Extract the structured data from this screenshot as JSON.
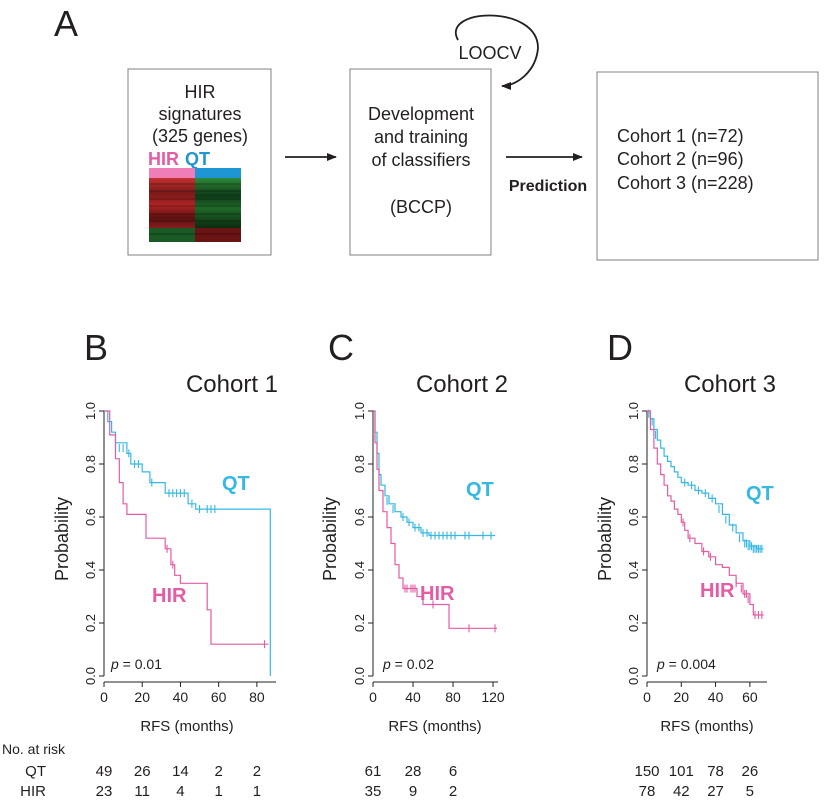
{
  "colors": {
    "qt": "#35b8e4",
    "hir": "#e45ca4",
    "text": "#231f20",
    "axis": "#231f20"
  },
  "panel_a": {
    "letter": "A",
    "box1": {
      "lines": [
        "HIR",
        "signatures",
        "(325 genes)"
      ],
      "hir_label": "HIR",
      "qt_label": "QT"
    },
    "box2": {
      "lines": [
        "Development",
        "and training",
        "of classifiers",
        "(BCCP)"
      ]
    },
    "loop_label": "LOOCV",
    "arrow2_label": "Prediction",
    "box3": {
      "lines": [
        "Cohort 1 (n=72)",
        "Cohort 2 (n=96)",
        "Cohort 3 (n=228)"
      ]
    }
  },
  "chart_data": [
    {
      "type": "line",
      "letter": "B",
      "title": "Cohort 1",
      "xlabel": "RFS (months)",
      "ylabel": "Probability",
      "xlim": [
        0,
        90
      ],
      "ylim": [
        0,
        1
      ],
      "xticks": [
        "0",
        "20",
        "40",
        "60",
        "80"
      ],
      "yticks": [
        "0.0",
        "0.2",
        "0.4",
        "0.6",
        "0.8",
        "1.0"
      ],
      "p_label": "p",
      "p_value": " = 0.01",
      "series": [
        {
          "name": "QT",
          "color": "#35b8e4",
          "steps": [
            [
              0,
              1.0
            ],
            [
              2,
              0.96
            ],
            [
              4,
              0.92
            ],
            [
              6,
              0.88
            ],
            [
              12,
              0.84
            ],
            [
              14,
              0.8
            ],
            [
              20,
              0.77
            ],
            [
              24,
              0.73
            ],
            [
              32,
              0.69
            ],
            [
              44,
              0.65
            ],
            [
              48,
              0.63
            ],
            [
              87,
              0.0
            ]
          ],
          "censor": [
            [
              6,
              0.86
            ],
            [
              8,
              0.86
            ],
            [
              10,
              0.86
            ],
            [
              13,
              0.84
            ],
            [
              16,
              0.8
            ],
            [
              18,
              0.8
            ],
            [
              25,
              0.73
            ],
            [
              34,
              0.69
            ],
            [
              36,
              0.69
            ],
            [
              38,
              0.69
            ],
            [
              40,
              0.69
            ],
            [
              42,
              0.69
            ],
            [
              46,
              0.65
            ],
            [
              50,
              0.63
            ],
            [
              54,
              0.63
            ],
            [
              56,
              0.63
            ],
            [
              58,
              0.63
            ]
          ]
        },
        {
          "name": "HIR",
          "color": "#e45ca4",
          "steps": [
            [
              0,
              1.0
            ],
            [
              3,
              0.91
            ],
            [
              6,
              0.82
            ],
            [
              8,
              0.73
            ],
            [
              10,
              0.65
            ],
            [
              12,
              0.61
            ],
            [
              22,
              0.52
            ],
            [
              32,
              0.48
            ],
            [
              35,
              0.42
            ],
            [
              37,
              0.38
            ],
            [
              40,
              0.35
            ],
            [
              54,
              0.25
            ],
            [
              56,
              0.12
            ],
            [
              86,
              0.12
            ]
          ],
          "censor": [
            [
              33,
              0.48
            ],
            [
              36,
              0.42
            ],
            [
              84,
              0.12
            ]
          ]
        }
      ],
      "risk": {
        "QT": [
          "49",
          "26",
          "14",
          "2",
          "2"
        ],
        "HIR": [
          "23",
          "11",
          "4",
          "1",
          "1"
        ]
      }
    },
    {
      "type": "line",
      "letter": "C",
      "title": "Cohort 2",
      "xlabel": "RFS (months)",
      "ylabel": "Probability",
      "xlim": [
        0,
        125
      ],
      "ylim": [
        0,
        1
      ],
      "xticks": [
        "0",
        "40",
        "80",
        "120"
      ],
      "yticks": [
        "0.0",
        "0.2",
        "0.4",
        "0.6",
        "0.8",
        "1.0"
      ],
      "p_label": "p",
      "p_value": " = 0.02",
      "series": [
        {
          "name": "QT",
          "color": "#35b8e4",
          "steps": [
            [
              0,
              1.0
            ],
            [
              2,
              0.92
            ],
            [
              4,
              0.84
            ],
            [
              6,
              0.76
            ],
            [
              8,
              0.72
            ],
            [
              12,
              0.68
            ],
            [
              16,
              0.65
            ],
            [
              22,
              0.62
            ],
            [
              28,
              0.6
            ],
            [
              34,
              0.58
            ],
            [
              40,
              0.56
            ],
            [
              48,
              0.54
            ],
            [
              56,
              0.53
            ],
            [
              122,
              0.53
            ]
          ],
          "censor": [
            [
              14,
              0.66
            ],
            [
              20,
              0.63
            ],
            [
              30,
              0.6
            ],
            [
              36,
              0.58
            ],
            [
              42,
              0.56
            ],
            [
              46,
              0.56
            ],
            [
              50,
              0.54
            ],
            [
              54,
              0.54
            ],
            [
              58,
              0.53
            ],
            [
              62,
              0.53
            ],
            [
              66,
              0.53
            ],
            [
              70,
              0.53
            ],
            [
              74,
              0.53
            ],
            [
              78,
              0.53
            ],
            [
              82,
              0.53
            ],
            [
              92,
              0.53
            ],
            [
              96,
              0.53
            ],
            [
              110,
              0.53
            ],
            [
              118,
              0.53
            ]
          ]
        },
        {
          "name": "HIR",
          "color": "#e45ca4",
          "steps": [
            [
              0,
              1.0
            ],
            [
              2,
              0.88
            ],
            [
              4,
              0.78
            ],
            [
              6,
              0.7
            ],
            [
              10,
              0.62
            ],
            [
              14,
              0.56
            ],
            [
              18,
              0.5
            ],
            [
              22,
              0.42
            ],
            [
              26,
              0.37
            ],
            [
              30,
              0.33
            ],
            [
              44,
              0.3
            ],
            [
              50,
              0.27
            ],
            [
              76,
              0.18
            ],
            [
              124,
              0.18
            ]
          ],
          "censor": [
            [
              32,
              0.33
            ],
            [
              34,
              0.33
            ],
            [
              38,
              0.33
            ],
            [
              40,
              0.33
            ],
            [
              42,
              0.33
            ],
            [
              60,
              0.27
            ],
            [
              96,
              0.18
            ],
            [
              122,
              0.18
            ]
          ]
        }
      ],
      "risk": {
        "QT": [
          "61",
          "28",
          "6"
        ],
        "HIR": [
          "35",
          "9",
          "2"
        ]
      }
    },
    {
      "type": "line",
      "letter": "D",
      "title": "Cohort 3",
      "xlabel": "RFS (months)",
      "ylabel": "Probability",
      "xlim": [
        0,
        70
      ],
      "ylim": [
        0,
        1
      ],
      "xticks": [
        "0",
        "20",
        "40",
        "60"
      ],
      "yticks": [
        "0.0",
        "0.2",
        "0.4",
        "0.6",
        "0.8",
        "1.0"
      ],
      "p_label": "p",
      "p_value": " = 0.004",
      "series": [
        {
          "name": "QT",
          "color": "#35b8e4",
          "steps": [
            [
              0,
              1.0
            ],
            [
              2,
              0.97
            ],
            [
              4,
              0.93
            ],
            [
              6,
              0.89
            ],
            [
              8,
              0.86
            ],
            [
              10,
              0.83
            ],
            [
              12,
              0.81
            ],
            [
              14,
              0.79
            ],
            [
              16,
              0.77
            ],
            [
              18,
              0.75
            ],
            [
              20,
              0.73
            ],
            [
              24,
              0.72
            ],
            [
              28,
              0.7
            ],
            [
              32,
              0.69
            ],
            [
              36,
              0.67
            ],
            [
              40,
              0.65
            ],
            [
              44,
              0.61
            ],
            [
              48,
              0.57
            ],
            [
              52,
              0.54
            ],
            [
              56,
              0.51
            ],
            [
              60,
              0.49
            ],
            [
              64,
              0.48
            ],
            [
              68,
              0.48
            ]
          ],
          "censor": [
            [
              1,
              0.99
            ],
            [
              3,
              0.96
            ],
            [
              5,
              0.91
            ],
            [
              22,
              0.73
            ],
            [
              26,
              0.72
            ],
            [
              30,
              0.7
            ],
            [
              34,
              0.69
            ],
            [
              38,
              0.67
            ],
            [
              42,
              0.63
            ],
            [
              46,
              0.59
            ],
            [
              50,
              0.56
            ],
            [
              54,
              0.52
            ],
            [
              57,
              0.5
            ],
            [
              58,
              0.5
            ],
            [
              59,
              0.49
            ],
            [
              60,
              0.49
            ],
            [
              61,
              0.49
            ],
            [
              62,
              0.48
            ],
            [
              63,
              0.48
            ],
            [
              64,
              0.48
            ],
            [
              65,
              0.48
            ],
            [
              66,
              0.48
            ],
            [
              67,
              0.48
            ]
          ]
        },
        {
          "name": "HIR",
          "color": "#e45ca4",
          "steps": [
            [
              0,
              1.0
            ],
            [
              2,
              0.93
            ],
            [
              4,
              0.86
            ],
            [
              6,
              0.8
            ],
            [
              8,
              0.76
            ],
            [
              10,
              0.72
            ],
            [
              12,
              0.68
            ],
            [
              14,
              0.66
            ],
            [
              16,
              0.63
            ],
            [
              18,
              0.61
            ],
            [
              20,
              0.58
            ],
            [
              22,
              0.55
            ],
            [
              24,
              0.52
            ],
            [
              28,
              0.5
            ],
            [
              32,
              0.47
            ],
            [
              36,
              0.45
            ],
            [
              40,
              0.42
            ],
            [
              44,
              0.41
            ],
            [
              48,
              0.38
            ],
            [
              52,
              0.35
            ],
            [
              56,
              0.31
            ],
            [
              60,
              0.27
            ],
            [
              62,
              0.23
            ],
            [
              68,
              0.23
            ]
          ],
          "censor": [
            [
              21,
              0.58
            ],
            [
              25,
              0.52
            ],
            [
              33,
              0.47
            ],
            [
              37,
              0.45
            ],
            [
              52,
              0.35
            ],
            [
              55,
              0.33
            ],
            [
              57,
              0.31
            ],
            [
              58,
              0.31
            ],
            [
              59,
              0.29
            ],
            [
              63,
              0.23
            ],
            [
              65,
              0.23
            ],
            [
              67,
              0.23
            ]
          ]
        }
      ],
      "risk": {
        "QT": [
          "150",
          "101",
          "78",
          "26"
        ],
        "HIR": [
          "78",
          "42",
          "27",
          "5"
        ]
      }
    }
  ],
  "risk_table": {
    "title": "No. at risk",
    "row_labels": [
      "QT",
      "HIR"
    ]
  }
}
